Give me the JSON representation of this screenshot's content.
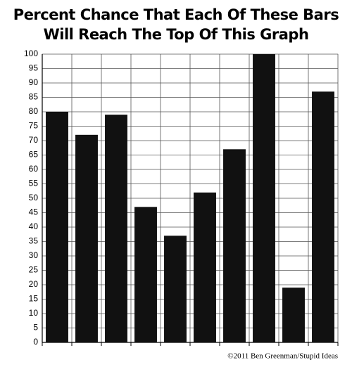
{
  "chart_data": {
    "type": "bar",
    "title": [
      "Percent Chance That Each Of These Bars",
      "Will Reach The Top Of This Graph"
    ],
    "annotation": "©2011 Ben Greenman/Stupid Ideas",
    "categories": [
      null,
      null,
      null,
      null,
      null,
      null,
      null,
      null,
      null,
      null
    ],
    "values": [
      80,
      72,
      79,
      47,
      37,
      52,
      67,
      100,
      19,
      87
    ],
    "color": "#111111",
    "ylim": [
      0,
      100
    ],
    "yticks": [
      0,
      5,
      10,
      15,
      20,
      25,
      30,
      35,
      40,
      45,
      50,
      55,
      60,
      65,
      70,
      75,
      80,
      85,
      90,
      95,
      100
    ],
    "grid": true
  }
}
